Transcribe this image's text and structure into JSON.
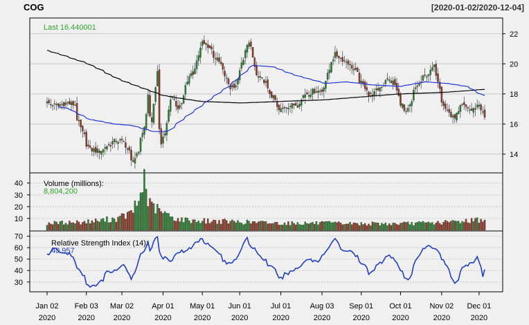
{
  "header": {
    "symbol": "COG",
    "date_range": "[2020-01-02/2020-12-04]"
  },
  "colors": {
    "background": "#f0f0f0",
    "grid": "#c8c8c8",
    "up": "#2e7d32",
    "down": "#8b3a2a",
    "label_green": "#2aa52a",
    "ma50": "#2233dd",
    "ma200": "#000000",
    "rsi": "#1f3fbf"
  },
  "chart_data": [
    {
      "type": "candlestick",
      "name": "price",
      "legend_label": "Last 16.440001",
      "y_ticks": [
        "14",
        "16",
        "18",
        "20",
        "22"
      ],
      "ylim": [
        12.8,
        23
      ],
      "grid": true,
      "x_tick_labels": [
        {
          "date": "2020-01-02",
          "line1": "Jan 02",
          "line2": "2020"
        },
        {
          "date": "2020-02-03",
          "line1": "Feb 03",
          "line2": "2020"
        },
        {
          "date": "2020-03-02",
          "line1": "Mar 02",
          "line2": "2020"
        },
        {
          "date": "2020-04-01",
          "line1": "Apr 01",
          "line2": "2020"
        },
        {
          "date": "2020-05-01",
          "line1": "May 01",
          "line2": "2020"
        },
        {
          "date": "2020-06-01",
          "line1": "Jun 01",
          "line2": "2020"
        },
        {
          "date": "2020-07-01",
          "line1": "Jul 01",
          "line2": "2020"
        },
        {
          "date": "2020-08-03",
          "line1": "Aug 03",
          "line2": "2020"
        },
        {
          "date": "2020-09-01",
          "line1": "Sep 01",
          "line2": "2020"
        },
        {
          "date": "2020-10-01",
          "line1": "Oct 01",
          "line2": "2020"
        },
        {
          "date": "2020-11-02",
          "line1": "Nov 02",
          "line2": "2020"
        },
        {
          "date": "2020-12-01",
          "line1": "Dec 01",
          "line2": "2020"
        }
      ],
      "close_anchors": [
        [
          "2020-01-02",
          17.4
        ],
        [
          "2020-01-10",
          17.2
        ],
        [
          "2020-01-17",
          17.4
        ],
        [
          "2020-01-24",
          17.3
        ],
        [
          "2020-01-30",
          15.4
        ],
        [
          "2020-02-05",
          14.3
        ],
        [
          "2020-02-12",
          14.2
        ],
        [
          "2020-02-20",
          14.6
        ],
        [
          "2020-02-26",
          14.9
        ],
        [
          "2020-03-03",
          14.8
        ],
        [
          "2020-03-09",
          13.5
        ],
        [
          "2020-03-13",
          14.0
        ],
        [
          "2020-03-18",
          15.8
        ],
        [
          "2020-03-20",
          17.8
        ],
        [
          "2020-03-24",
          16.2
        ],
        [
          "2020-03-27",
          19.5
        ],
        [
          "2020-03-31",
          14.5
        ],
        [
          "2020-04-03",
          16.0
        ],
        [
          "2020-04-08",
          17.8
        ],
        [
          "2020-04-14",
          17.0
        ],
        [
          "2020-04-21",
          18.9
        ],
        [
          "2020-04-27",
          19.8
        ],
        [
          "2020-05-01",
          21.4
        ],
        [
          "2020-05-06",
          21.2
        ],
        [
          "2020-05-12",
          20.4
        ],
        [
          "2020-05-18",
          19.5
        ],
        [
          "2020-05-22",
          18.4
        ],
        [
          "2020-05-28",
          18.6
        ],
        [
          "2020-06-03",
          20.2
        ],
        [
          "2020-06-06",
          22.0
        ],
        [
          "2020-06-09",
          21.0
        ],
        [
          "2020-06-12",
          19.2
        ],
        [
          "2020-06-18",
          18.9
        ],
        [
          "2020-06-24",
          17.9
        ],
        [
          "2020-06-30",
          16.9
        ],
        [
          "2020-07-07",
          17.2
        ],
        [
          "2020-07-14",
          17.3
        ],
        [
          "2020-07-21",
          18.0
        ],
        [
          "2020-07-28",
          18.2
        ],
        [
          "2020-08-03",
          18.2
        ],
        [
          "2020-08-07",
          19.6
        ],
        [
          "2020-08-12",
          20.6
        ],
        [
          "2020-08-18",
          20.3
        ],
        [
          "2020-08-25",
          19.8
        ],
        [
          "2020-09-01",
          18.7
        ],
        [
          "2020-09-08",
          17.9
        ],
        [
          "2020-09-14",
          18.2
        ],
        [
          "2020-09-21",
          19.0
        ],
        [
          "2020-09-28",
          18.6
        ],
        [
          "2020-10-01",
          17.4
        ],
        [
          "2020-10-06",
          16.7
        ],
        [
          "2020-10-13",
          18.4
        ],
        [
          "2020-10-20",
          19.2
        ],
        [
          "2020-10-27",
          19.8
        ],
        [
          "2020-10-30",
          18.5
        ],
        [
          "2020-11-04",
          17.0
        ],
        [
          "2020-11-10",
          16.4
        ],
        [
          "2020-11-17",
          17.2
        ],
        [
          "2020-11-24",
          16.9
        ],
        [
          "2020-12-01",
          17.3
        ],
        [
          "2020-12-04",
          16.44
        ]
      ],
      "sma50_anchors": [
        [
          "2020-01-02",
          17.3
        ],
        [
          "2020-01-20",
          17.0
        ],
        [
          "2020-02-05",
          16.3
        ],
        [
          "2020-02-25",
          16.0
        ],
        [
          "2020-03-09",
          15.9
        ],
        [
          "2020-03-25",
          15.5
        ],
        [
          "2020-04-05",
          15.5
        ],
        [
          "2020-04-20",
          16.5
        ],
        [
          "2020-05-10",
          17.8
        ],
        [
          "2020-05-28",
          18.9
        ],
        [
          "2020-06-10",
          19.9
        ],
        [
          "2020-06-25",
          19.8
        ],
        [
          "2020-07-15",
          19.2
        ],
        [
          "2020-08-05",
          18.7
        ],
        [
          "2020-08-20",
          18.8
        ],
        [
          "2020-09-10",
          18.6
        ],
        [
          "2020-10-01",
          18.5
        ],
        [
          "2020-10-20",
          18.8
        ],
        [
          "2020-11-05",
          18.7
        ],
        [
          "2020-11-20",
          18.5
        ],
        [
          "2020-12-04",
          17.9
        ]
      ],
      "sma200_anchors": [
        [
          "2020-01-02",
          20.9
        ],
        [
          "2020-02-01",
          20.1
        ],
        [
          "2020-03-01",
          18.9
        ],
        [
          "2020-04-01",
          17.9
        ],
        [
          "2020-05-01",
          17.5
        ],
        [
          "2020-06-01",
          17.4
        ],
        [
          "2020-07-01",
          17.5
        ],
        [
          "2020-08-03",
          17.6
        ],
        [
          "2020-09-01",
          17.8
        ],
        [
          "2020-10-01",
          18.0
        ],
        [
          "2020-11-02",
          18.1
        ],
        [
          "2020-12-04",
          18.3
        ]
      ]
    },
    {
      "type": "bar",
      "name": "volume",
      "legend_label": "Volume (millions):",
      "legend_value": "8,804,200",
      "y_ticks": [
        "10",
        "20",
        "30",
        "40"
      ],
      "ylim": [
        0,
        48
      ],
      "grid": true,
      "anchors": [
        [
          "2020-01-02",
          6
        ],
        [
          "2020-02-01",
          7
        ],
        [
          "2020-02-28",
          10
        ],
        [
          "2020-03-09",
          15
        ],
        [
          "2020-03-12",
          22
        ],
        [
          "2020-03-16",
          30
        ],
        [
          "2020-03-18",
          46
        ],
        [
          "2020-03-20",
          26
        ],
        [
          "2020-03-24",
          20
        ],
        [
          "2020-03-30",
          16
        ],
        [
          "2020-04-06",
          12
        ],
        [
          "2020-04-15",
          9
        ],
        [
          "2020-05-01",
          8
        ],
        [
          "2020-06-01",
          7
        ],
        [
          "2020-07-01",
          6
        ],
        [
          "2020-08-03",
          6
        ],
        [
          "2020-09-01",
          5.5
        ],
        [
          "2020-10-01",
          5.5
        ],
        [
          "2020-11-02",
          6.5
        ],
        [
          "2020-11-30",
          9
        ],
        [
          "2020-12-04",
          8.8
        ]
      ]
    },
    {
      "type": "line",
      "name": "rsi",
      "legend_label": "Relative Strength Index (14):",
      "legend_value": "40.957",
      "y_ticks": [
        "30",
        "40",
        "50",
        "60",
        "70"
      ],
      "ylim": [
        22,
        74
      ],
      "grid": true,
      "anchors": [
        [
          "2020-01-02",
          54
        ],
        [
          "2020-01-08",
          59
        ],
        [
          "2020-01-14",
          55
        ],
        [
          "2020-01-21",
          55
        ],
        [
          "2020-01-28",
          40
        ],
        [
          "2020-02-04",
          27
        ],
        [
          "2020-02-10",
          26
        ],
        [
          "2020-02-18",
          38
        ],
        [
          "2020-02-25",
          40
        ],
        [
          "2020-03-03",
          44
        ],
        [
          "2020-03-09",
          32
        ],
        [
          "2020-03-13",
          48
        ],
        [
          "2020-03-18",
          58
        ],
        [
          "2020-03-20",
          65
        ],
        [
          "2020-03-23",
          58
        ],
        [
          "2020-03-27",
          70
        ],
        [
          "2020-03-31",
          52
        ],
        [
          "2020-04-06",
          48
        ],
        [
          "2020-04-13",
          56
        ],
        [
          "2020-04-21",
          58
        ],
        [
          "2020-05-01",
          68
        ],
        [
          "2020-05-08",
          62
        ],
        [
          "2020-05-14",
          55
        ],
        [
          "2020-05-20",
          46
        ],
        [
          "2020-05-26",
          48
        ],
        [
          "2020-06-01",
          57
        ],
        [
          "2020-06-05",
          68
        ],
        [
          "2020-06-10",
          60
        ],
        [
          "2020-06-17",
          51
        ],
        [
          "2020-06-24",
          43
        ],
        [
          "2020-07-01",
          33
        ],
        [
          "2020-07-08",
          38
        ],
        [
          "2020-07-15",
          42
        ],
        [
          "2020-07-22",
          50
        ],
        [
          "2020-07-30",
          48
        ],
        [
          "2020-08-07",
          60
        ],
        [
          "2020-08-12",
          67
        ],
        [
          "2020-08-18",
          58
        ],
        [
          "2020-08-25",
          56
        ],
        [
          "2020-09-01",
          46
        ],
        [
          "2020-09-08",
          38
        ],
        [
          "2020-09-14",
          44
        ],
        [
          "2020-09-22",
          54
        ],
        [
          "2020-09-28",
          48
        ],
        [
          "2020-10-02",
          38
        ],
        [
          "2020-10-07",
          31
        ],
        [
          "2020-10-14",
          52
        ],
        [
          "2020-10-21",
          61
        ],
        [
          "2020-10-27",
          60
        ],
        [
          "2020-11-02",
          51
        ],
        [
          "2020-11-07",
          38
        ],
        [
          "2020-11-11",
          29
        ],
        [
          "2020-11-18",
          44
        ],
        [
          "2020-11-25",
          47
        ],
        [
          "2020-11-30",
          53
        ],
        [
          "2020-12-02",
          44
        ],
        [
          "2020-12-03",
          35
        ],
        [
          "2020-12-04",
          41
        ]
      ]
    }
  ]
}
